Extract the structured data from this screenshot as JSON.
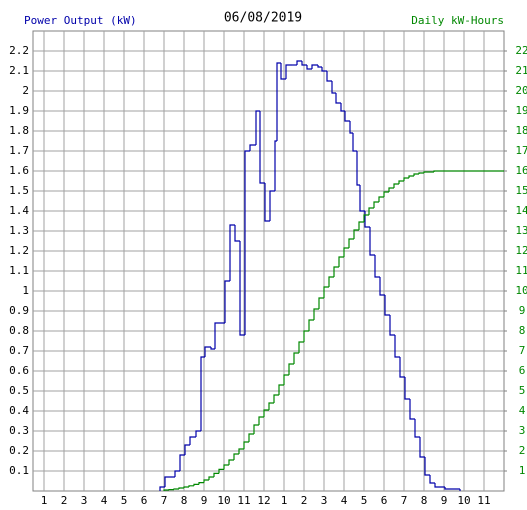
{
  "chart_data": {
    "type": "step",
    "title": "06/08/2019",
    "xlim": [
      0.45,
      24
    ],
    "ylim": [
      0,
      2.3
    ],
    "y2lim": [
      0,
      23
    ],
    "xticks": [
      1,
      2,
      3,
      4,
      5,
      6,
      7,
      8,
      9,
      10,
      11,
      12,
      {
        "value": 13,
        "label": "1"
      },
      {
        "value": 14,
        "label": "2"
      },
      {
        "value": 15,
        "label": "3"
      },
      {
        "value": 16,
        "label": "4"
      },
      {
        "value": 17,
        "label": "5"
      },
      {
        "value": 18,
        "label": "6"
      },
      {
        "value": 19,
        "label": "7"
      },
      {
        "value": 20,
        "label": "8"
      },
      {
        "value": 21,
        "label": "9"
      },
      {
        "value": 22,
        "label": "10"
      },
      {
        "value": 23,
        "label": "11"
      }
    ],
    "yticks": [
      0.1,
      0.2,
      0.3,
      0.4,
      0.5,
      0.6,
      0.7,
      0.8,
      0.9,
      1.0,
      1.1,
      1.2,
      1.3,
      1.4,
      1.5,
      1.6,
      1.7,
      1.8,
      1.9,
      2.0,
      2.1,
      2.2
    ],
    "y2ticks": [
      1,
      2,
      3,
      4,
      5,
      6,
      7,
      8,
      9,
      10,
      11,
      12,
      13,
      14,
      15,
      16,
      17,
      18,
      19,
      20,
      21,
      22
    ],
    "grid": true,
    "series": [
      {
        "name": "Power Output (kW)",
        "color": "#0000aa",
        "x": [
          6.8,
          7.05,
          7.55,
          7.8,
          8.05,
          8.3,
          8.6,
          8.85,
          9.05,
          9.35,
          9.55,
          10.05,
          10.3,
          10.55,
          10.8,
          11.05,
          11.3,
          11.6,
          11.8,
          12.05,
          12.3,
          12.55,
          12.65,
          12.85,
          13.1,
          13.4,
          13.65,
          13.9,
          14.15,
          14.4,
          14.7,
          14.9,
          15.15,
          15.4,
          15.6,
          15.85,
          16.05,
          16.3,
          16.45,
          16.65,
          16.8,
          17.05,
          17.3,
          17.55,
          17.8,
          18.05,
          18.3,
          18.55,
          18.8,
          19.05,
          19.3,
          19.55,
          19.8,
          20.05,
          20.3,
          20.55,
          21.05,
          21.8
        ],
        "values": [
          0.02,
          0.07,
          0.1,
          0.18,
          0.23,
          0.27,
          0.3,
          0.67,
          0.72,
          0.71,
          0.84,
          1.05,
          1.33,
          1.25,
          0.78,
          1.7,
          1.73,
          1.9,
          1.54,
          1.35,
          1.5,
          1.75,
          2.14,
          2.06,
          2.13,
          2.13,
          2.15,
          2.13,
          2.11,
          2.13,
          2.12,
          2.1,
          2.05,
          1.99,
          1.94,
          1.9,
          1.85,
          1.79,
          1.7,
          1.53,
          1.4,
          1.32,
          1.18,
          1.07,
          0.98,
          0.88,
          0.78,
          0.67,
          0.57,
          0.46,
          0.36,
          0.27,
          0.17,
          0.08,
          0.04,
          0.02,
          0.01,
          0
        ]
      },
      {
        "name": "Daily kW-Hours",
        "color": "#008800",
        "axis": "y2",
        "x": [
          7,
          7.25,
          7.5,
          7.75,
          8,
          8.25,
          8.5,
          8.75,
          9,
          9.25,
          9.5,
          9.75,
          10,
          10.25,
          10.5,
          10.75,
          11,
          11.25,
          11.5,
          11.75,
          12,
          12.25,
          12.5,
          12.75,
          13,
          13.25,
          13.5,
          13.75,
          14,
          14.25,
          14.5,
          14.75,
          15,
          15.25,
          15.5,
          15.75,
          16,
          16.25,
          16.5,
          16.75,
          17,
          17.25,
          17.5,
          17.75,
          18,
          18.25,
          18.5,
          18.75,
          19,
          19.25,
          19.5,
          19.75,
          20,
          20.5,
          24
        ],
        "values": [
          0.05,
          0.07,
          0.1,
          0.15,
          0.2,
          0.26,
          0.33,
          0.42,
          0.55,
          0.7,
          0.88,
          1.08,
          1.3,
          1.55,
          1.85,
          2.1,
          2.45,
          2.85,
          3.3,
          3.7,
          4.05,
          4.4,
          4.8,
          5.3,
          5.8,
          6.35,
          6.9,
          7.45,
          8.0,
          8.55,
          9.1,
          9.65,
          10.2,
          10.7,
          11.2,
          11.7,
          12.15,
          12.6,
          13.05,
          13.45,
          13.8,
          14.15,
          14.45,
          14.7,
          14.95,
          15.15,
          15.35,
          15.5,
          15.65,
          15.75,
          15.85,
          15.9,
          15.95,
          16.0,
          16.0
        ]
      }
    ]
  }
}
